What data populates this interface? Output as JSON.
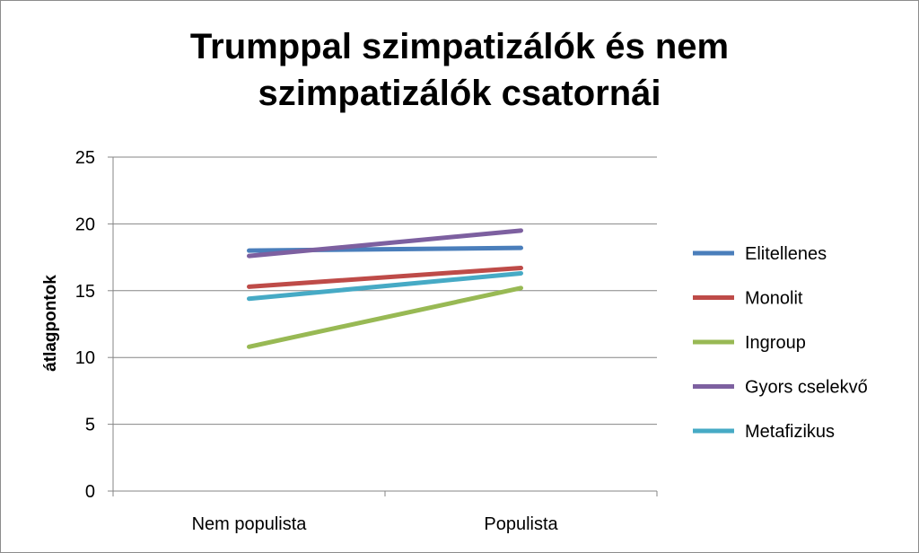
{
  "chart_data": {
    "type": "line",
    "title_lines": [
      "Trumppal szimpatizálók és nem",
      "szimpatizálók csatornái"
    ],
    "xlabel": "",
    "ylabel": "átlagpontok",
    "categories": [
      "Nem populista",
      "Populista"
    ],
    "ylim": [
      0,
      25
    ],
    "yticks": [
      "0",
      "5",
      "10",
      "15",
      "20",
      "25"
    ],
    "grid": true,
    "legend_position": "right",
    "series": [
      {
        "name": "Elitellenes",
        "color": "#4a7ebb",
        "values": [
          18.0,
          18.2
        ]
      },
      {
        "name": "Monolit",
        "color": "#be4b48",
        "values": [
          15.3,
          16.7
        ]
      },
      {
        "name": "Ingroup",
        "color": "#98b954",
        "values": [
          10.8,
          15.2
        ]
      },
      {
        "name": "Gyors cselekvő",
        "color": "#7d60a0",
        "values": [
          17.6,
          19.5
        ]
      },
      {
        "name": "Metafizikus",
        "color": "#46aac5",
        "values": [
          14.4,
          16.3
        ]
      }
    ]
  }
}
